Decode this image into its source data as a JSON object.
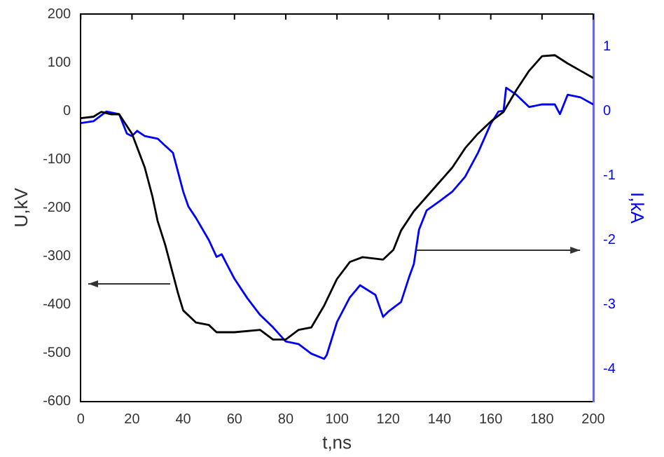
{
  "chart_data": {
    "type": "line",
    "xlabel": "t,ns",
    "ylabel": "U,kV",
    "y2label": "I,kA",
    "xlim": [
      0,
      200
    ],
    "xticks": [
      0,
      20,
      40,
      60,
      80,
      100,
      120,
      140,
      160,
      180,
      200
    ],
    "ylim": [
      -600,
      200
    ],
    "yticks": [
      -600,
      -500,
      -400,
      -300,
      -200,
      -100,
      0,
      100,
      200
    ],
    "y2lim": [
      -4.5,
      1.5
    ],
    "y2ticks": [
      -4,
      -3,
      -2,
      -1,
      0,
      1
    ],
    "grid": false,
    "legend": false,
    "marker": "none",
    "line_style": "solid",
    "series": [
      {
        "color": "#000000",
        "x": [
          0,
          5,
          8,
          12,
          15,
          20,
          25,
          28,
          30,
          33,
          36,
          38,
          40,
          45,
          50,
          53,
          60,
          70,
          75,
          80,
          85,
          90,
          95,
          100,
          105,
          110,
          118,
          122,
          125,
          130,
          135,
          140,
          145,
          150,
          155,
          160,
          165,
          170,
          175,
          180,
          185,
          190,
          195,
          200
        ],
        "values": [
          -15,
          -12,
          -2,
          -7,
          -7,
          -47,
          -117,
          -177,
          -227,
          -277,
          -337,
          -377,
          -412,
          -437,
          -442,
          -457,
          -457,
          -452,
          -472,
          -472,
          -452,
          -447,
          -402,
          -347,
          -312,
          -302,
          -307,
          -287,
          -247,
          -207,
          -177,
          -147,
          -117,
          -77,
          -47,
          -22,
          -2,
          43,
          83,
          113,
          115,
          98,
          83,
          68
        ]
      },
      {
        "color": "#0000ff",
        "axis": "y2",
        "x": [
          0,
          5,
          10,
          15,
          18,
          20,
          22,
          25,
          30,
          33,
          36,
          38,
          40,
          42,
          45,
          50,
          53,
          55,
          58,
          60,
          65,
          70,
          75,
          80,
          85,
          90,
          95,
          96,
          100,
          105,
          109,
          115,
          118,
          120,
          125,
          128,
          130,
          132,
          135,
          140,
          145,
          150,
          155,
          160,
          163,
          165,
          166,
          170,
          175,
          180,
          185,
          187,
          190,
          195,
          200
        ],
        "values": [
          -0.19,
          -0.16,
          -0.01,
          -0.05,
          -0.35,
          -0.39,
          -0.31,
          -0.39,
          -0.43,
          -0.54,
          -0.65,
          -0.95,
          -1.25,
          -1.48,
          -1.66,
          -2.0,
          -2.26,
          -2.22,
          -2.45,
          -2.6,
          -2.9,
          -3.16,
          -3.35,
          -3.57,
          -3.61,
          -3.76,
          -3.84,
          -3.78,
          -3.27,
          -2.89,
          -2.7,
          -2.85,
          -3.19,
          -3.11,
          -2.96,
          -2.59,
          -2.37,
          -1.84,
          -1.54,
          -1.4,
          -1.25,
          -1.02,
          -0.65,
          -0.2,
          -0.01,
          0.0,
          0.36,
          0.25,
          0.06,
          0.1,
          0.1,
          -0.05,
          0.25,
          0.21,
          0.1
        ]
      }
    ]
  }
}
